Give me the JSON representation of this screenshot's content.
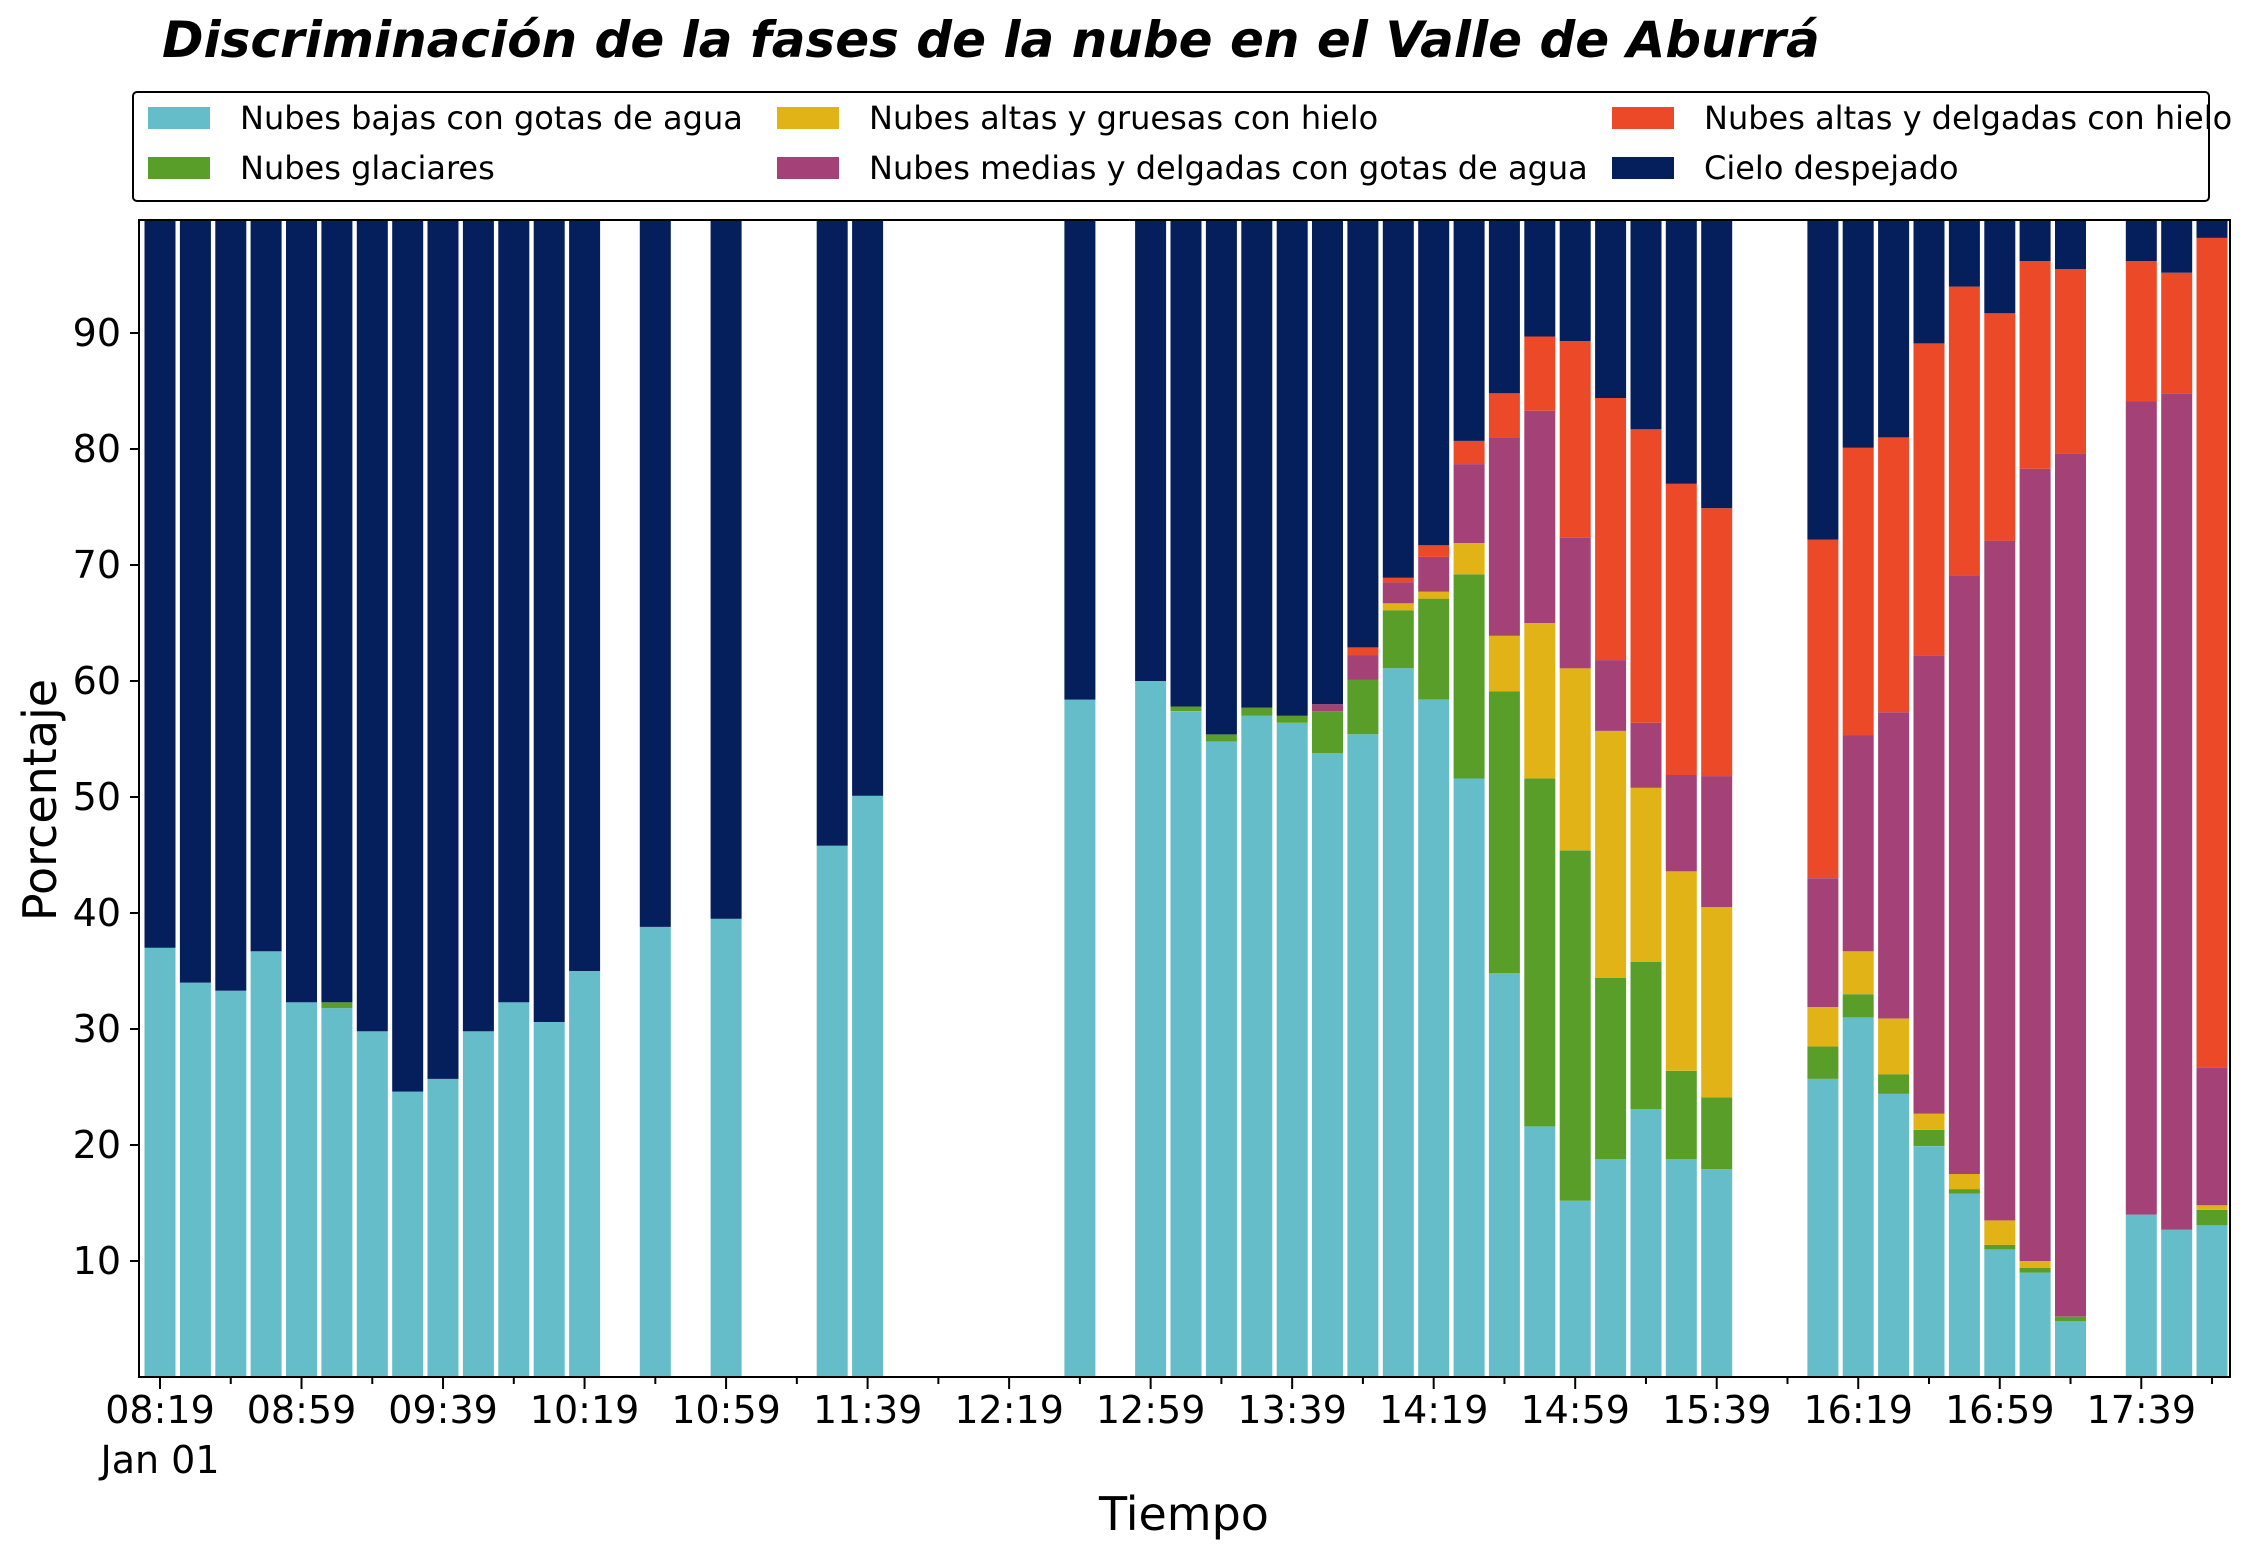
{
  "chart_data": {
    "type": "bar",
    "stacked": true,
    "title": "Discriminación de la fases de la nube en el Valle de Aburrá",
    "xlabel": "Tiempo",
    "ylabel": "Porcentaje",
    "ylim": [
      0,
      100
    ],
    "yticks": [
      10,
      20,
      30,
      40,
      50,
      60,
      70,
      80,
      90
    ],
    "xticks": [
      "08:19",
      "08:59",
      "09:39",
      "10:19",
      "10:59",
      "11:39",
      "12:19",
      "12:59",
      "13:39",
      "14:19",
      "14:59",
      "15:39",
      "16:19",
      "16:59",
      "17:39"
    ],
    "x_date_label": "Jan 01",
    "grid": false,
    "legend_position": "top",
    "x": [
      "08:19",
      "08:29",
      "08:39",
      "08:49",
      "08:59",
      "09:09",
      "09:19",
      "09:29",
      "09:39",
      "09:49",
      "09:59",
      "10:09",
      "10:19",
      "10:29",
      "10:39",
      "10:49",
      "10:59",
      "11:09",
      "11:19",
      "11:29",
      "11:39",
      "11:49",
      "11:59",
      "12:09",
      "12:19",
      "12:29",
      "12:39",
      "12:49",
      "12:59",
      "13:09",
      "13:19",
      "13:29",
      "13:39",
      "13:49",
      "13:59",
      "14:09",
      "14:19",
      "14:29",
      "14:39",
      "14:49",
      "14:59",
      "15:09",
      "15:19",
      "15:29",
      "15:39",
      "15:49",
      "15:59",
      "16:09",
      "16:19",
      "16:29",
      "16:39",
      "16:49",
      "16:59",
      "17:09",
      "17:19",
      "17:29",
      "17:39",
      "17:49",
      "17:59"
    ],
    "series": [
      {
        "name": "Nubes bajas con gotas de agua",
        "color": "#64bdc8",
        "values": [
          37,
          34,
          33.3,
          36.7,
          32.3,
          31.8,
          29.8,
          24.6,
          25.7,
          29.8,
          32.3,
          30.6,
          35,
          null,
          38.8,
          null,
          39.5,
          null,
          null,
          45.8,
          50.1,
          null,
          null,
          null,
          null,
          null,
          58.4,
          null,
          60,
          57.4,
          54.8,
          57,
          56.4,
          53.8,
          55.4,
          61.1,
          58.4,
          51.6,
          34.8,
          21.6,
          15.2,
          18.8,
          23.1,
          18.8,
          17.9,
          null,
          null,
          25.7,
          31,
          24.4,
          19.9,
          15.8,
          11,
          9,
          4.8,
          null,
          14,
          12.7,
          13.1
        ]
      },
      {
        "name": "Nubes glaciares",
        "color": "#5a9e2a",
        "values": [
          0,
          0,
          0,
          0,
          0,
          0.5,
          0,
          0,
          0,
          0,
          0,
          0,
          0,
          null,
          0,
          null,
          0,
          null,
          null,
          0,
          0,
          null,
          null,
          null,
          null,
          null,
          0,
          null,
          0,
          0.4,
          0.6,
          0.7,
          0.6,
          3.6,
          4.7,
          5,
          8.7,
          17.6,
          24.3,
          30,
          30.2,
          15.6,
          12.7,
          7.6,
          6.2,
          null,
          null,
          2.8,
          2,
          1.7,
          1.4,
          0.4,
          0.4,
          0.4,
          0.4,
          null,
          0,
          0,
          1.3
        ]
      },
      {
        "name": "Nubes altas y gruesas con hielo",
        "color": "#e2b316",
        "values": [
          0,
          0,
          0,
          0,
          0,
          0,
          0,
          0,
          0,
          0,
          0,
          0,
          0,
          null,
          0,
          null,
          0,
          null,
          null,
          0,
          0,
          null,
          null,
          null,
          null,
          null,
          0,
          null,
          0,
          0,
          0,
          0,
          0,
          0,
          0,
          0.6,
          0.6,
          2.7,
          4.8,
          13.4,
          15.7,
          21.3,
          15,
          17.2,
          16.4,
          null,
          null,
          3.4,
          3.7,
          4.8,
          1.4,
          1.3,
          2.1,
          0.6,
          0,
          null,
          0,
          0,
          0.4
        ]
      },
      {
        "name": "Nubes medias y delgadas con gotas de agua",
        "color": "#a44278",
        "values": [
          0,
          0,
          0,
          0,
          0,
          0,
          0,
          0,
          0,
          0,
          0,
          0,
          0,
          null,
          0,
          null,
          0,
          null,
          null,
          0,
          0,
          null,
          null,
          null,
          null,
          null,
          0,
          null,
          0,
          0,
          0,
          0,
          0,
          0.6,
          2.1,
          1.8,
          3,
          6.8,
          17.1,
          18.3,
          11.3,
          6.1,
          5.6,
          8.3,
          11.3,
          null,
          null,
          11.1,
          18.6,
          26.4,
          39.5,
          51.6,
          58.6,
          68.3,
          74.4,
          null,
          70.1,
          72.1,
          11.9
        ]
      },
      {
        "name": "Nubes altas y delgadas con hielo",
        "color": "#ec4928",
        "values": [
          0,
          0,
          0,
          0,
          0,
          0,
          0,
          0,
          0,
          0,
          0,
          0,
          0,
          null,
          0,
          null,
          0,
          null,
          null,
          0,
          0,
          null,
          null,
          null,
          null,
          null,
          0,
          null,
          0,
          0,
          0,
          0,
          0,
          0,
          0.7,
          0.4,
          1,
          2,
          3.8,
          6.4,
          16.9,
          22.6,
          25.3,
          25.1,
          23.1,
          null,
          null,
          29.2,
          24.8,
          23.7,
          26.9,
          24.9,
          19.6,
          17.9,
          15.9,
          null,
          12.1,
          10.4,
          71.5
        ]
      },
      {
        "name": "Cielo despejado",
        "color": "#041f5c",
        "values": [
          63,
          66,
          66.7,
          63.3,
          67.7,
          67.7,
          70.2,
          75.4,
          74.3,
          70.2,
          67.7,
          69.4,
          65,
          null,
          61.2,
          null,
          60.5,
          null,
          null,
          54.2,
          49.9,
          null,
          null,
          null,
          null,
          null,
          41.6,
          null,
          40,
          42.2,
          44.6,
          42.3,
          43,
          42,
          37.1,
          31.1,
          28.3,
          19.3,
          15.2,
          10.3,
          10.7,
          15.6,
          18.3,
          23,
          25.1,
          null,
          null,
          27.8,
          19.9,
          19,
          10.9,
          5.8,
          8.3,
          3.8,
          4.5,
          null,
          3.8,
          4.8,
          1.8
        ]
      }
    ]
  }
}
